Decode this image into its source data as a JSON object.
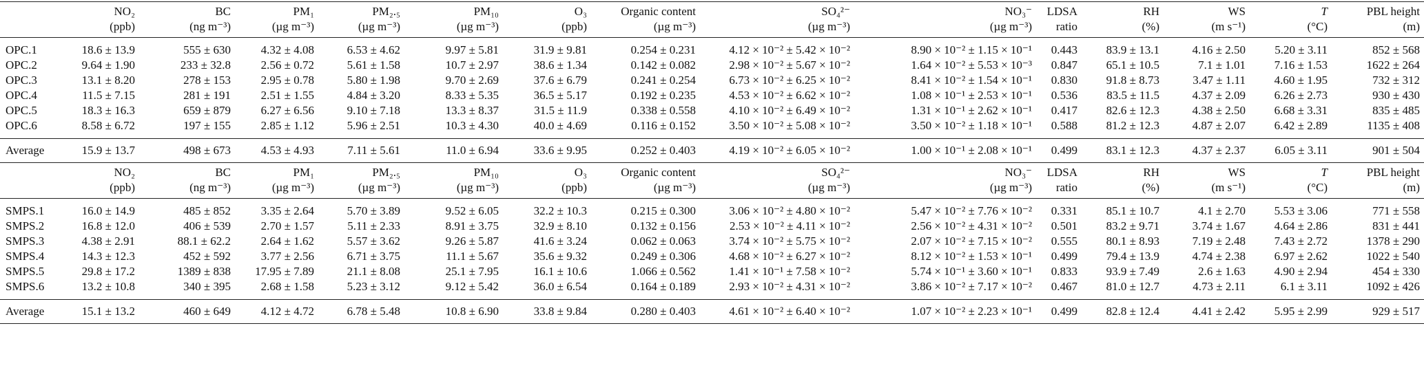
{
  "sections": [
    {
      "header": {
        "names": [
          "NO₂",
          "BC",
          "PM₁",
          "PM₂.₅",
          "PM₁₀",
          "O₃",
          "Organic content",
          "SO₄²⁻",
          "NO₃⁻",
          "LDSA",
          "RH",
          "WS",
          "T",
          "PBL height"
        ],
        "units": [
          "(ppb)",
          "(ng m⁻³)",
          "(µg m⁻³)",
          "(µg m⁻³)",
          "(µg m⁻³)",
          "(ppb)",
          "(µg m⁻³)",
          "(µg m⁻³)",
          "(µg m⁻³)",
          "ratio",
          "(%)",
          "(m s⁻¹)",
          "(°C)",
          "(m)"
        ]
      },
      "rows": [
        [
          "OPC.1",
          "18.6 ± 13.9",
          "555 ± 630",
          "4.32 ± 4.08",
          "6.53 ± 4.62",
          "9.97 ± 5.81",
          "31.9 ± 9.81",
          "0.254 ± 0.231",
          "4.12 × 10⁻² ± 5.42 × 10⁻²",
          "8.90 × 10⁻² ± 1.15 × 10⁻¹",
          "0.443",
          "83.9 ± 13.1",
          "4.16 ± 2.50",
          "5.20 ± 3.11",
          "852 ± 568"
        ],
        [
          "OPC.2",
          "9.64 ± 1.90",
          "233 ± 32.8",
          "2.56 ± 0.72",
          "5.61 ± 1.58",
          "10.7 ± 2.97",
          "38.6 ± 1.34",
          "0.142 ± 0.082",
          "2.98 × 10⁻² ± 5.67 × 10⁻²",
          "1.64 × 10⁻² ± 5.53 × 10⁻³",
          "0.847",
          "65.1 ± 10.5",
          "7.1 ± 1.01",
          "7.16 ± 1.53",
          "1622 ± 264"
        ],
        [
          "OPC.3",
          "13.1 ± 8.20",
          "278 ± 153",
          "2.95 ± 0.78",
          "5.80 ± 1.98",
          "9.70 ± 2.69",
          "37.6 ± 6.79",
          "0.241 ± 0.254",
          "6.73 × 10⁻² ± 6.25 × 10⁻²",
          "8.41 × 10⁻² ± 1.54 × 10⁻¹",
          "0.830",
          "91.8 ± 8.73",
          "3.47 ± 1.11",
          "4.60 ± 1.95",
          "732 ± 312"
        ],
        [
          "OPC.4",
          "11.5 ± 7.15",
          "281 ± 191",
          "2.51 ± 1.55",
          "4.84 ± 3.20",
          "8.33 ± 5.35",
          "36.5 ± 5.17",
          "0.192 ± 0.235",
          "4.53 × 10⁻² ± 6.62 × 10⁻²",
          "1.08 × 10⁻¹ ± 2.53 × 10⁻¹",
          "0.536",
          "83.5 ± 11.5",
          "4.37 ± 2.09",
          "6.26 ± 2.73",
          "930 ± 430"
        ],
        [
          "OPC.5",
          "18.3 ± 16.3",
          "659 ± 879",
          "6.27 ± 6.56",
          "9.10 ± 7.18",
          "13.3 ± 8.37",
          "31.5 ± 11.9",
          "0.338 ± 0.558",
          "4.10 × 10⁻² ± 6.49 × 10⁻²",
          "1.31 × 10⁻¹ ± 2.62 × 10⁻¹",
          "0.417",
          "82.6 ± 12.3",
          "4.38 ± 2.50",
          "6.68 ± 3.31",
          "835 ± 485"
        ],
        [
          "OPC.6",
          "8.58 ± 6.72",
          "197 ± 155",
          "2.85 ± 1.12",
          "5.96 ± 2.51",
          "10.3 ± 4.30",
          "40.0 ± 4.69",
          "0.116 ± 0.152",
          "3.50 × 10⁻² ± 5.08 × 10⁻²",
          "3.50 × 10⁻² ± 1.18 × 10⁻¹",
          "0.588",
          "81.2 ± 12.3",
          "4.87 ± 2.07",
          "6.42 ± 2.89",
          "1135 ± 408"
        ]
      ],
      "average": [
        "Average",
        "15.9 ± 13.7",
        "498 ± 673",
        "4.53 ± 4.93",
        "7.11 ± 5.61",
        "11.0 ± 6.94",
        "33.6 ± 9.95",
        "0.252 ± 0.403",
        "4.19 × 10⁻² ± 6.05 × 10⁻²",
        "1.00 × 10⁻¹ ± 2.08 × 10⁻¹",
        "0.499",
        "83.1 ± 12.3",
        "4.37 ± 2.37",
        "6.05 ± 3.11",
        "901 ± 504"
      ]
    },
    {
      "header": {
        "names": [
          "NO₂",
          "BC",
          "PM₁",
          "PM₂.₅",
          "PM₁₀",
          "O₃",
          "Organic content",
          "SO₄²⁻",
          "NO₃⁻",
          "LDSA",
          "RH",
          "WS",
          "T",
          "PBL height"
        ],
        "units": [
          "(ppb)",
          "(ng m⁻³)",
          "(µg m⁻³)",
          "(µg m⁻³)",
          "(µg m⁻³)",
          "(ppb)",
          "(µg m⁻³)",
          "(µg m⁻³)",
          "(µg m⁻³)",
          "ratio",
          "(%)",
          "(m s⁻¹)",
          "(°C)",
          "(m)"
        ]
      },
      "rows": [
        [
          "SMPS.1",
          "16.0 ± 14.9",
          "485 ± 852",
          "3.35 ± 2.64",
          "5.70 ± 3.89",
          "9.52 ± 6.05",
          "32.2 ± 10.3",
          "0.215 ± 0.300",
          "3.06 × 10⁻² ± 4.80 × 10⁻²",
          "5.47 × 10⁻² ± 7.76 × 10⁻²",
          "0.331",
          "85.1 ± 10.7",
          "4.1 ± 2.70",
          "5.53 ± 3.06",
          "771 ± 558"
        ],
        [
          "SMPS.2",
          "16.8 ± 12.0",
          "406 ± 539",
          "2.70 ± 1.57",
          "5.11 ± 2.33",
          "8.91 ± 3.75",
          "32.9 ± 8.10",
          "0.132 ± 0.156",
          "2.53 × 10⁻² ± 4.11 × 10⁻²",
          "2.56 × 10⁻² ± 4.31 × 10⁻²",
          "0.501",
          "83.2 ± 9.71",
          "3.74 ± 1.67",
          "4.64 ± 2.86",
          "831 ± 441"
        ],
        [
          "SMPS.3",
          "4.38 ± 2.91",
          "88.1 ± 62.2",
          "2.64 ± 1.62",
          "5.57 ± 3.62",
          "9.26 ± 5.87",
          "41.6 ± 3.24",
          "0.062 ± 0.063",
          "3.74 × 10⁻² ± 5.75 × 10⁻²",
          "2.07 × 10⁻² ± 7.15 × 10⁻²",
          "0.555",
          "80.1 ± 8.93",
          "7.19 ± 2.48",
          "7.43 ± 2.72",
          "1378 ± 290"
        ],
        [
          "SMPS.4",
          "14.3 ± 12.3",
          "452 ± 592",
          "3.77 ± 2.56",
          "6.71 ± 3.75",
          "11.1 ± 5.67",
          "35.6 ± 9.32",
          "0.249 ± 0.306",
          "4.68 × 10⁻² ± 6.27 × 10⁻²",
          "8.12 × 10⁻² ± 1.53 × 10⁻¹",
          "0.499",
          "79.4 ± 13.9",
          "4.74 ± 2.38",
          "6.97 ± 2.62",
          "1022 ± 540"
        ],
        [
          "SMPS.5",
          "29.8 ± 17.2",
          "1389 ± 838",
          "17.95 ± 7.89",
          "21.1 ± 8.08",
          "25.1 ± 7.95",
          "16.1 ± 10.6",
          "1.066 ± 0.562",
          "1.41 × 10⁻¹ ± 7.58 × 10⁻²",
          "5.74 × 10⁻¹ ± 3.60 × 10⁻¹",
          "0.833",
          "93.9 ± 7.49",
          "2.6 ± 1.63",
          "4.90 ± 2.94",
          "454 ± 330"
        ],
        [
          "SMPS.6",
          "13.2 ± 10.8",
          "340 ± 395",
          "2.68 ± 1.58",
          "5.23 ± 3.12",
          "9.12 ± 5.42",
          "36.0 ± 6.54",
          "0.164 ± 0.189",
          "2.93 × 10⁻² ± 4.31 × 10⁻²",
          "3.86 × 10⁻² ± 7.17 × 10⁻²",
          "0.467",
          "81.0 ± 12.7",
          "4.73 ± 2.11",
          "6.1 ± 3.11",
          "1092 ± 426"
        ]
      ],
      "average": [
        "Average",
        "15.1 ± 13.2",
        "460 ± 649",
        "4.12 ± 4.72",
        "6.78 ± 5.48",
        "10.8 ± 6.90",
        "33.8 ± 9.84",
        "0.280 ± 0.403",
        "4.61 × 10⁻² ± 6.40 × 10⁻²",
        "1.07 × 10⁻² ± 2.23 × 10⁻¹",
        "0.499",
        "82.8 ± 12.4",
        "4.41 ± 2.42",
        "5.95 ± 2.99",
        "929 ± 517"
      ]
    }
  ]
}
